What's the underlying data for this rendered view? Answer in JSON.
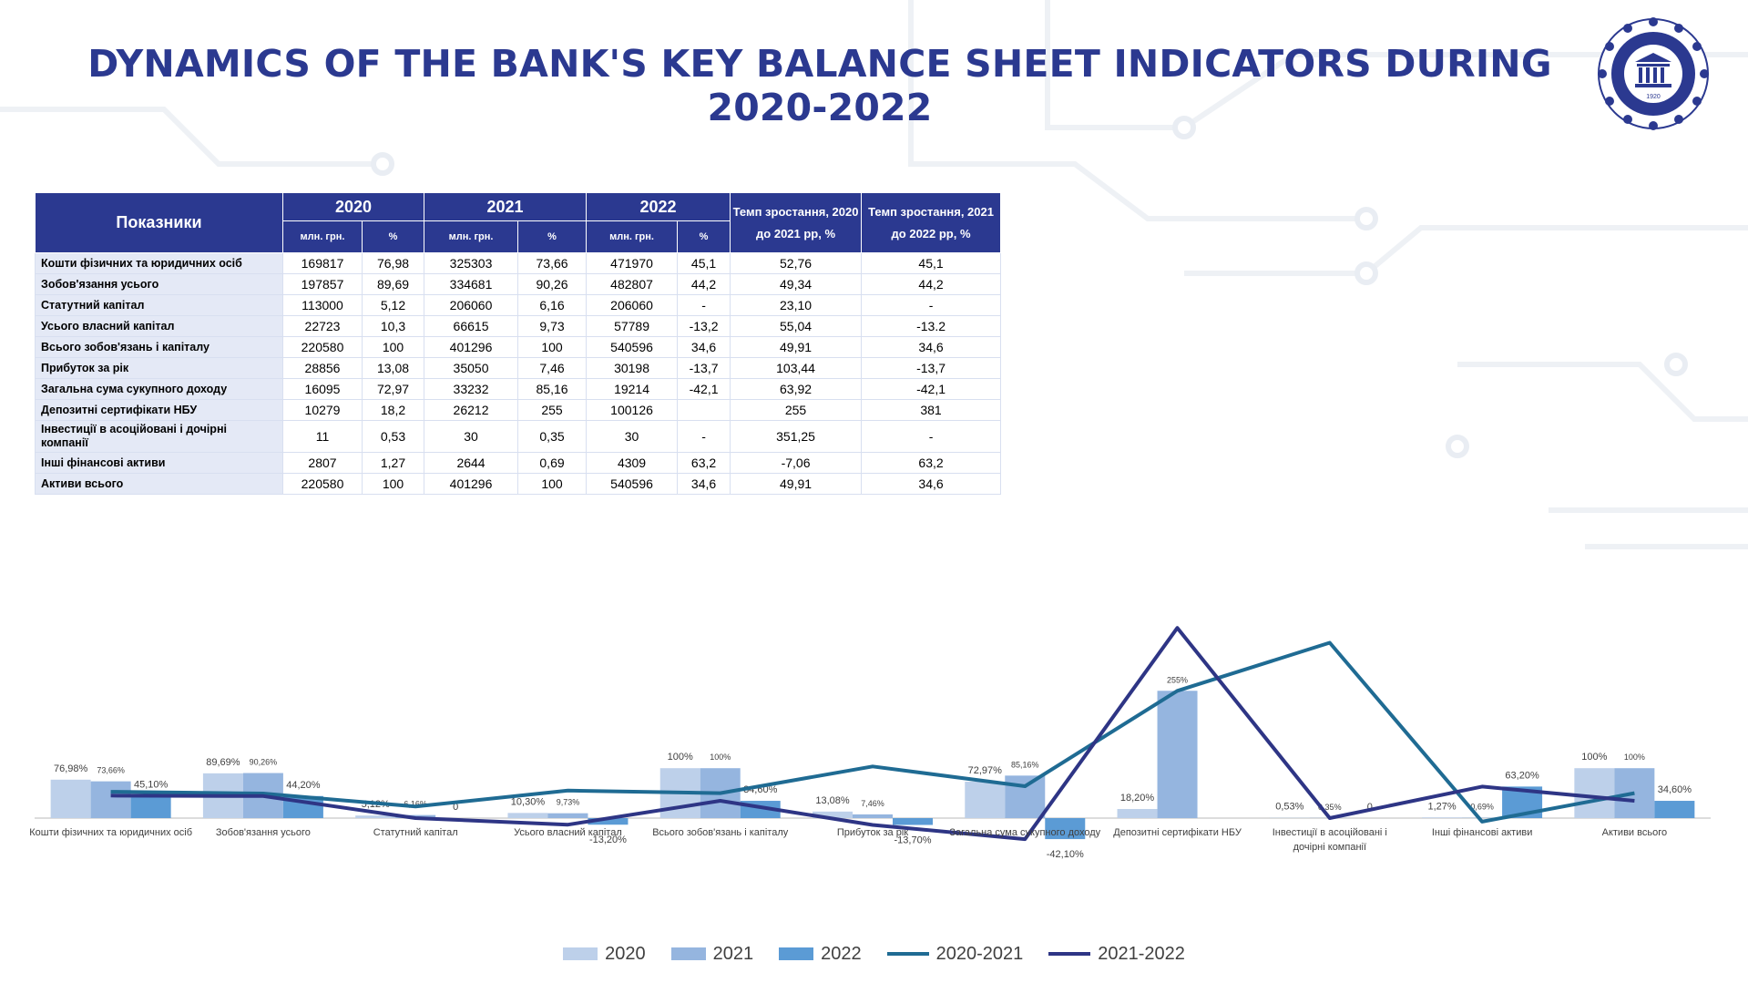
{
  "title": "DYNAMICS OF THE BANK'S KEY BALANCE SHEET INDICATORS DURING 2020-2022",
  "logo": {
    "year": "1920"
  },
  "table": {
    "header_indicator": "Показники",
    "years": [
      "2020",
      "2021",
      "2022"
    ],
    "unit_mln": "млн. грн.",
    "unit_pct": "%",
    "growth1": "Темп зростання, 2020 до 2021 рр, %",
    "growth2": "Темп зростання, 2021 до 2022 рр, %",
    "rows": [
      [
        "Кошти фізичних та юридичних осіб",
        "169817",
        "76,98",
        "325303",
        "73,66",
        "471970",
        "45,1",
        "52,76",
        "45,1"
      ],
      [
        "Зобов'язання усього",
        "197857",
        "89,69",
        "334681",
        "90,26",
        "482807",
        "44,2",
        "49,34",
        "44,2"
      ],
      [
        "Статутний капітал",
        "113000",
        "5,12",
        "206060",
        "6,16",
        "206060",
        "-",
        "23,10",
        "-"
      ],
      [
        "Усього власний капітал",
        "22723",
        "10,3",
        "66615",
        "9,73",
        "57789",
        "-13,2",
        "55,04",
        "-13.2"
      ],
      [
        "Всього зобов'язань і капіталу",
        "220580",
        "100",
        "401296",
        "100",
        "540596",
        "34,6",
        "49,91",
        "34,6"
      ],
      [
        "Прибуток за рік",
        "28856",
        "13,08",
        "35050",
        "7,46",
        "30198",
        "-13,7",
        "103,44",
        "-13,7"
      ],
      [
        "Загальна сума сукупного доходу",
        "16095",
        "72,97",
        "33232",
        "85,16",
        "19214",
        "-42,1",
        "63,92",
        "-42,1"
      ],
      [
        "Депозитні сертифікати НБУ",
        "10279",
        "18,2",
        "26212",
        "255",
        "100126",
        "",
        "255",
        "381"
      ],
      [
        "Інвестиції в асоційовані і дочірні компанії",
        "11",
        "0,53",
        "30",
        "0,35",
        "30",
        "-",
        "351,25",
        "-"
      ],
      [
        "Інші фінансові активи",
        "2807",
        "1,27",
        "2644",
        "0,69",
        "4309",
        "63,2",
        "-7,06",
        "63,2"
      ],
      [
        "Активи всього",
        "220580",
        "100",
        "401296",
        "100",
        "540596",
        "34,6",
        "49,91",
        "34,6"
      ]
    ]
  },
  "chart_data": {
    "type": "bar",
    "categories": [
      "Кошти фізичних та юридичних осіб",
      "Зобов'язання усього",
      "Статутний капітал",
      "Усього власний капітал",
      "Всього зобов'язань і капіталу",
      "Прибуток за рік",
      "Загальна сума сукупного доходу",
      "Депозитні сертифікати НБУ",
      "Інвестиції в асоційовані і дочірні компанії",
      "Інші фінансові активи",
      "Активи всього"
    ],
    "series": [
      {
        "name": "2020",
        "kind": "bar",
        "color": "#bdd0ea",
        "values": [
          76.98,
          89.69,
          5.12,
          10.3,
          100,
          13.08,
          72.97,
          18.2,
          0.53,
          1.27,
          100
        ],
        "labels": [
          "76,98%",
          "89,69%",
          "5,12%",
          "10,30%",
          "100%",
          "13,08%",
          "72,97%",
          "18,20%",
          "0,53%",
          "1,27%",
          "100%"
        ]
      },
      {
        "name": "2021",
        "kind": "bar",
        "color": "#95b5df",
        "values": [
          73.66,
          90.26,
          6.16,
          9.73,
          100,
          7.46,
          85.16,
          255,
          0.35,
          0.69,
          100
        ],
        "labels": [
          "73,66%",
          "90,26%",
          "6,16%",
          "9,73%",
          "100%",
          "7,46%",
          "85,16%",
          "255%",
          "0,35%",
          "0,69%",
          "100%"
        ]
      },
      {
        "name": "2022",
        "kind": "bar",
        "color": "#5b9bd5",
        "values": [
          45.1,
          44.2,
          0,
          -13.2,
          34.6,
          -13.7,
          -42.1,
          null,
          0,
          63.2,
          34.6
        ],
        "labels": [
          "45,10%",
          "44,20%",
          "0",
          "-13,20%",
          "34,60%",
          "-13,70%",
          "-42,10%",
          "",
          "0",
          "63,20%",
          "34,60%"
        ]
      },
      {
        "name": "2020-2021",
        "kind": "line",
        "color": "#1f6b93",
        "values": [
          52.76,
          49.34,
          23.1,
          55.04,
          49.91,
          103.44,
          63.92,
          255,
          351.25,
          -7.06,
          49.91
        ]
      },
      {
        "name": "2021-2022",
        "kind": "line",
        "color": "#2e3585",
        "values": [
          45.1,
          44.2,
          0,
          -13.2,
          34.6,
          -13.7,
          -42.1,
          381,
          0,
          63.2,
          34.6
        ]
      }
    ],
    "ylim": [
      -50,
      385
    ],
    "legend_position": "bottom"
  }
}
